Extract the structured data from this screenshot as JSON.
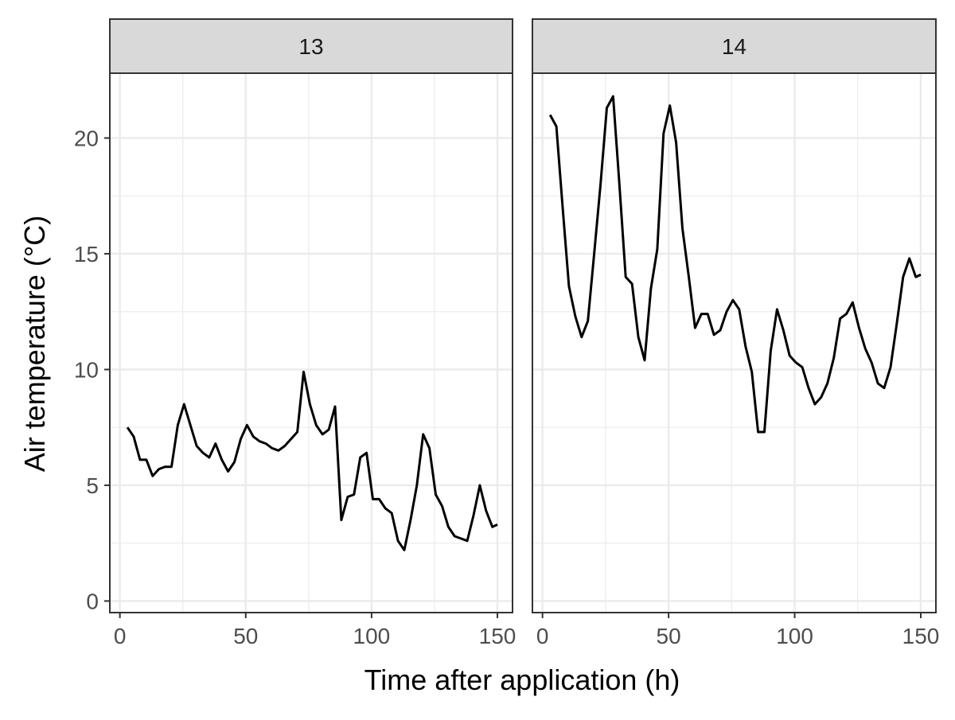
{
  "chart_data": {
    "type": "line",
    "facet": true,
    "xlabel": "Time after application (h)",
    "ylabel": "Air temperature (°C)",
    "xlim": [
      -4,
      156
    ],
    "ylim": [
      -0.5,
      22.8
    ],
    "xticks": [
      0,
      50,
      100,
      150
    ],
    "yticks": [
      0,
      5,
      10,
      15,
      20
    ],
    "grid": true,
    "colors": {
      "line": "#000000",
      "strip": "#d9d9d9",
      "grid": "#ebebeb",
      "border": "#333333",
      "tick_text": "#4d4d4d"
    },
    "panels": [
      {
        "strip_label": "13",
        "x": [
          3,
          5.5,
          8,
          10.5,
          13,
          15.5,
          18,
          20.5,
          23,
          25.5,
          28,
          30.5,
          33,
          35.5,
          38,
          40.5,
          43,
          45.5,
          48,
          50.5,
          53,
          55.5,
          58,
          60.5,
          63,
          65.5,
          68,
          70.5,
          73,
          75.5,
          78,
          80.5,
          83,
          85.5,
          88,
          90.5,
          93,
          95.5,
          98,
          100.5,
          103,
          105.5,
          108,
          110.5,
          113,
          115.5,
          118,
          120.5,
          123,
          125.5,
          128,
          130.5,
          133,
          135.5,
          138,
          140.5,
          143,
          145.5,
          148,
          150
        ],
        "y": [
          7.5,
          7.1,
          6.1,
          6.1,
          5.4,
          5.7,
          5.8,
          5.8,
          7.6,
          8.5,
          7.6,
          6.7,
          6.4,
          6.2,
          6.8,
          6.1,
          5.6,
          6.0,
          7.0,
          7.6,
          7.1,
          6.9,
          6.8,
          6.6,
          6.5,
          6.7,
          7.0,
          7.3,
          9.9,
          8.5,
          7.6,
          7.2,
          7.4,
          8.4,
          3.5,
          4.5,
          4.6,
          6.2,
          6.4,
          4.4,
          4.4,
          4.0,
          3.8,
          2.6,
          2.2,
          3.5,
          5.0,
          7.2,
          6.6,
          4.6,
          4.1,
          3.2,
          2.8,
          2.7,
          2.6,
          3.7,
          5.0,
          3.9,
          3.2,
          3.3
        ]
      },
      {
        "strip_label": "14",
        "x": [
          3,
          5.5,
          8,
          10.5,
          13,
          15.5,
          18,
          20.5,
          23,
          25.5,
          28,
          30.5,
          33,
          35.5,
          38,
          40.5,
          43,
          45.5,
          48,
          50.5,
          53,
          55.5,
          58,
          60.5,
          63,
          65.5,
          68,
          70.5,
          73,
          75.5,
          78,
          80.5,
          83,
          85.5,
          88,
          90.5,
          93,
          95.5,
          98,
          100.5,
          103,
          105.5,
          108,
          110.5,
          113,
          115.5,
          118,
          120.5,
          123,
          125.5,
          128,
          130.5,
          133,
          135.5,
          138,
          140.5,
          143,
          145.5,
          148,
          150
        ],
        "y": [
          21.0,
          20.5,
          17.0,
          13.6,
          12.3,
          11.4,
          12.1,
          15.0,
          18.0,
          21.3,
          21.8,
          18.0,
          14.0,
          13.7,
          11.4,
          10.4,
          13.5,
          15.2,
          20.2,
          21.4,
          19.8,
          16.1,
          14.0,
          11.8,
          12.4,
          12.4,
          11.5,
          11.7,
          12.5,
          13.0,
          12.6,
          11.0,
          9.9,
          7.3,
          7.3,
          10.8,
          12.6,
          11.7,
          10.6,
          10.3,
          10.1,
          9.2,
          8.5,
          8.8,
          9.4,
          10.5,
          12.2,
          12.4,
          12.9,
          11.8,
          10.9,
          10.3,
          9.4,
          9.2,
          10.1,
          12.0,
          14.0,
          14.8,
          14.0,
          14.1
        ]
      }
    ]
  }
}
